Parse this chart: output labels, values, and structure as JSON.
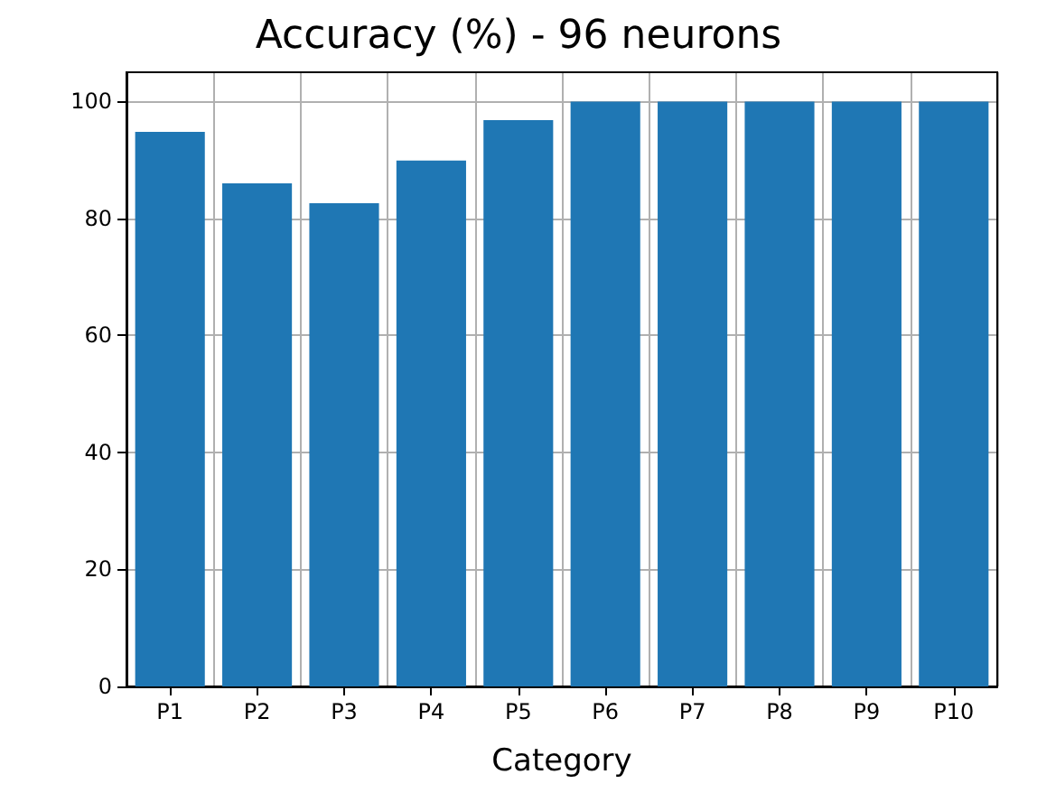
{
  "chart_data": {
    "type": "bar",
    "title": "Accuracy (%) - 96 neurons",
    "xlabel": "Category",
    "categories": [
      "P1",
      "P2",
      "P3",
      "P4",
      "P5",
      "P6",
      "P7",
      "P8",
      "P9",
      "P10"
    ],
    "values": [
      94.8,
      86,
      82.6,
      89.9,
      96.8,
      100,
      100,
      100,
      100,
      100
    ],
    "color": "#1f77b4",
    "ylim": [
      0,
      105
    ],
    "yticks": [
      0,
      20,
      40,
      60,
      80,
      100
    ],
    "grid": true
  }
}
